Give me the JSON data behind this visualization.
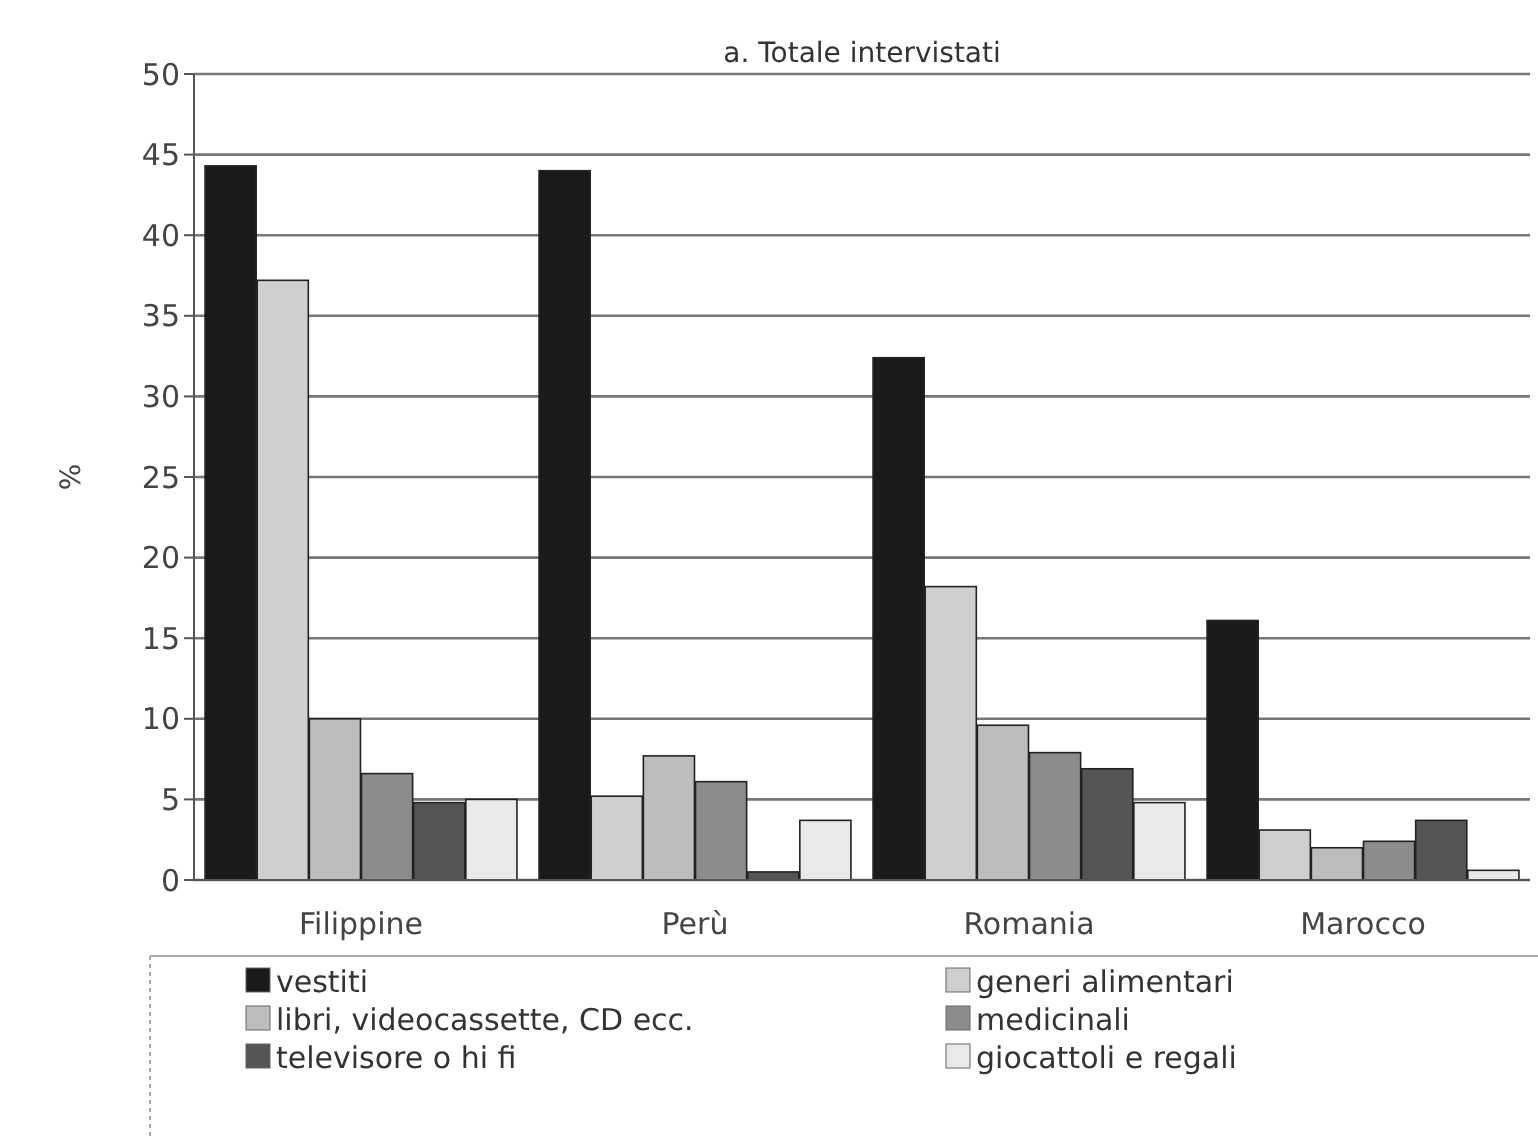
{
  "chart_data": {
    "type": "bar",
    "title": "a. Totale intervistati",
    "ylabel": "%",
    "categories": [
      "Filippine",
      "Perù",
      "Romania",
      "Marocco"
    ],
    "series": [
      {
        "name": "vestiti",
        "color": "#1a1a1a",
        "values": [
          44.3,
          44,
          32.4,
          16.1
        ]
      },
      {
        "name": "generi alimentari",
        "color": "#cfcfcf",
        "values": [
          37.2,
          5.2,
          18.2,
          3.1
        ]
      },
      {
        "name": "libri, videocassette, CD ecc.",
        "color": "#bdbdbd",
        "values": [
          10,
          7.7,
          9.6,
          2
        ]
      },
      {
        "name": "medicinali",
        "color": "#8c8c8c",
        "values": [
          6.6,
          6.1,
          7.9,
          2.4
        ]
      },
      {
        "name": "televisore o hi fi",
        "color": "#555555",
        "values": [
          4.8,
          0.5,
          6.9,
          3.7
        ]
      },
      {
        "name": "giocattoli e regali",
        "color": "#e9e9e9",
        "values": [
          5,
          3.7,
          4.8,
          0.6
        ]
      }
    ],
    "ylim": [
      0,
      50
    ],
    "yticks": [
      0,
      5,
      10,
      15,
      20,
      25,
      30,
      35,
      40,
      45,
      50
    ],
    "grid": "y",
    "legend": "bottom"
  }
}
